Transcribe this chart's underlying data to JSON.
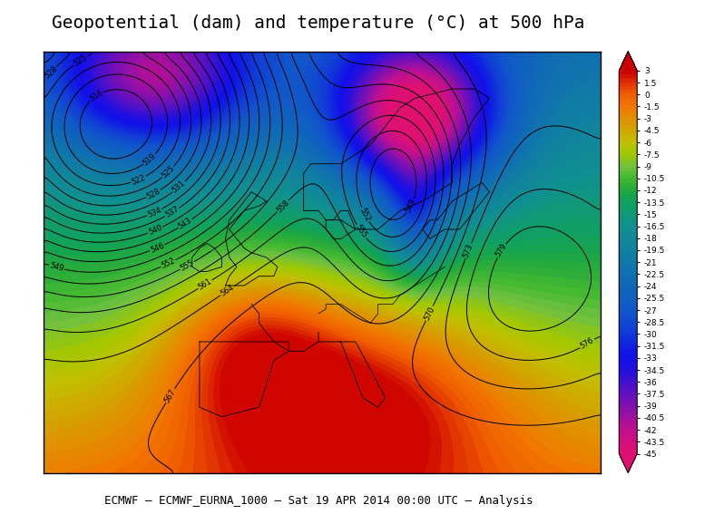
{
  "title": "Geopotential (dam) and temperature (°C) at 500 hPa",
  "footer": "ECMWF – ECMWF_EURNA_1000 – Sat 19 APR 2014 00:00 UTC – Analysis",
  "colorbar_levels": [
    3,
    1.5,
    0,
    -1.5,
    -3,
    -4.5,
    -6,
    -7.5,
    -9,
    -10.5,
    -12,
    -13.5,
    -15,
    -16.5,
    -18,
    -19.5,
    -21,
    -22.5,
    -24,
    -25.5,
    -27,
    -28.5,
    -30,
    -31.5,
    -33,
    -34.5,
    -36,
    -37.5,
    -39,
    -40.5,
    -42,
    -43.5,
    -45
  ],
  "colorbar_colors": [
    "#cc0000",
    "#e03000",
    "#f06000",
    "#f07800",
    "#e09000",
    "#d0a800",
    "#c0c000",
    "#a0c800",
    "#70c040",
    "#40b830",
    "#20a840",
    "#10a060",
    "#109878",
    "#109090",
    "#108898",
    "#1080a0",
    "#1078a8",
    "#1070b0",
    "#1068b8",
    "#1060c0",
    "#1058c8",
    "#1048d0",
    "#1038d8",
    "#1020e0",
    "#1010e8",
    "#2010e0",
    "#4010d0",
    "#6010c0",
    "#8010b0",
    "#a010a0",
    "#c01090",
    "#d01080",
    "#e01070"
  ],
  "background_color": "#ffffff",
  "map_background": "#e8f4e8",
  "title_fontsize": 14,
  "footer_fontsize": 9
}
